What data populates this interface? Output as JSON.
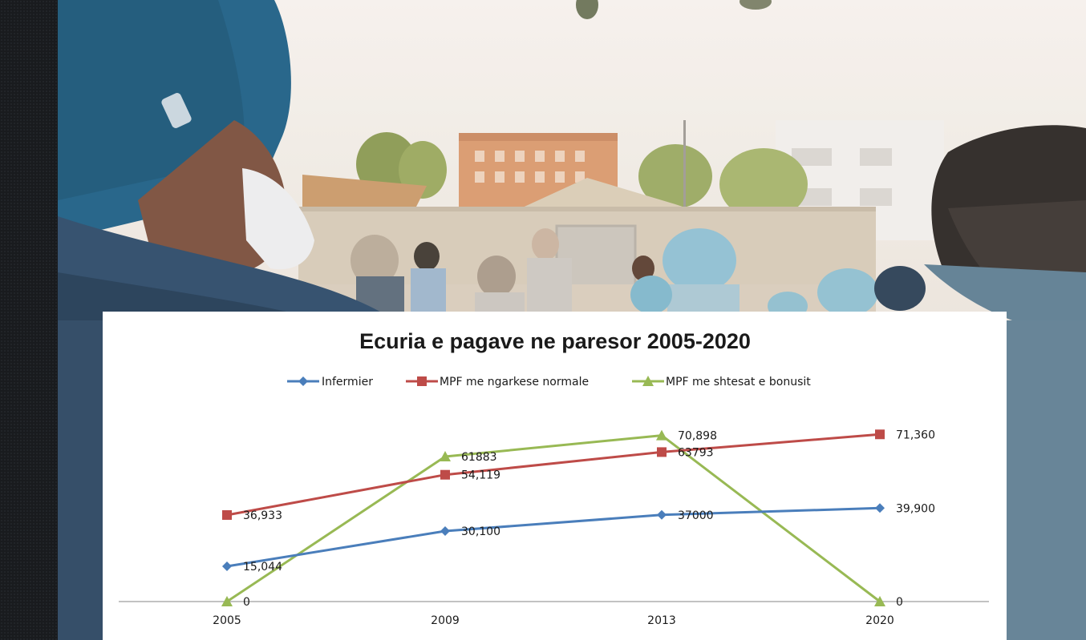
{
  "colors": {
    "infermier": "#4a7ebb",
    "mpf_normal": "#be4b48",
    "mpf_bonus": "#98b954",
    "axis": "#868686"
  },
  "chart_data": {
    "type": "line",
    "title": "Ecuria e pagave ne paresor 2005-2020",
    "xlabel": "",
    "ylabel": "",
    "categories": [
      "2005",
      "2009",
      "2013",
      "2020"
    ],
    "ylim": [
      0,
      80000
    ],
    "grid": false,
    "legend_position": "top",
    "series": [
      {
        "name": "Infermier",
        "marker": "diamond",
        "color": "#4a7ebb",
        "values": [
          15044,
          30100,
          37000,
          39900
        ],
        "labels": [
          "15,044",
          "30,100",
          "37000",
          "39,900"
        ]
      },
      {
        "name": "MPF me ngarkese normale",
        "marker": "square",
        "color": "#be4b48",
        "values": [
          36933,
          54119,
          63793,
          71360
        ],
        "labels": [
          "36,933",
          "54,119",
          "63793",
          "71,360"
        ]
      },
      {
        "name": "MPF me shtesat e bonusit",
        "marker": "triangle",
        "color": "#98b954",
        "values": [
          0,
          61883,
          70898,
          0
        ],
        "labels": [
          "0",
          "61883",
          "70,898",
          "0"
        ]
      }
    ]
  }
}
